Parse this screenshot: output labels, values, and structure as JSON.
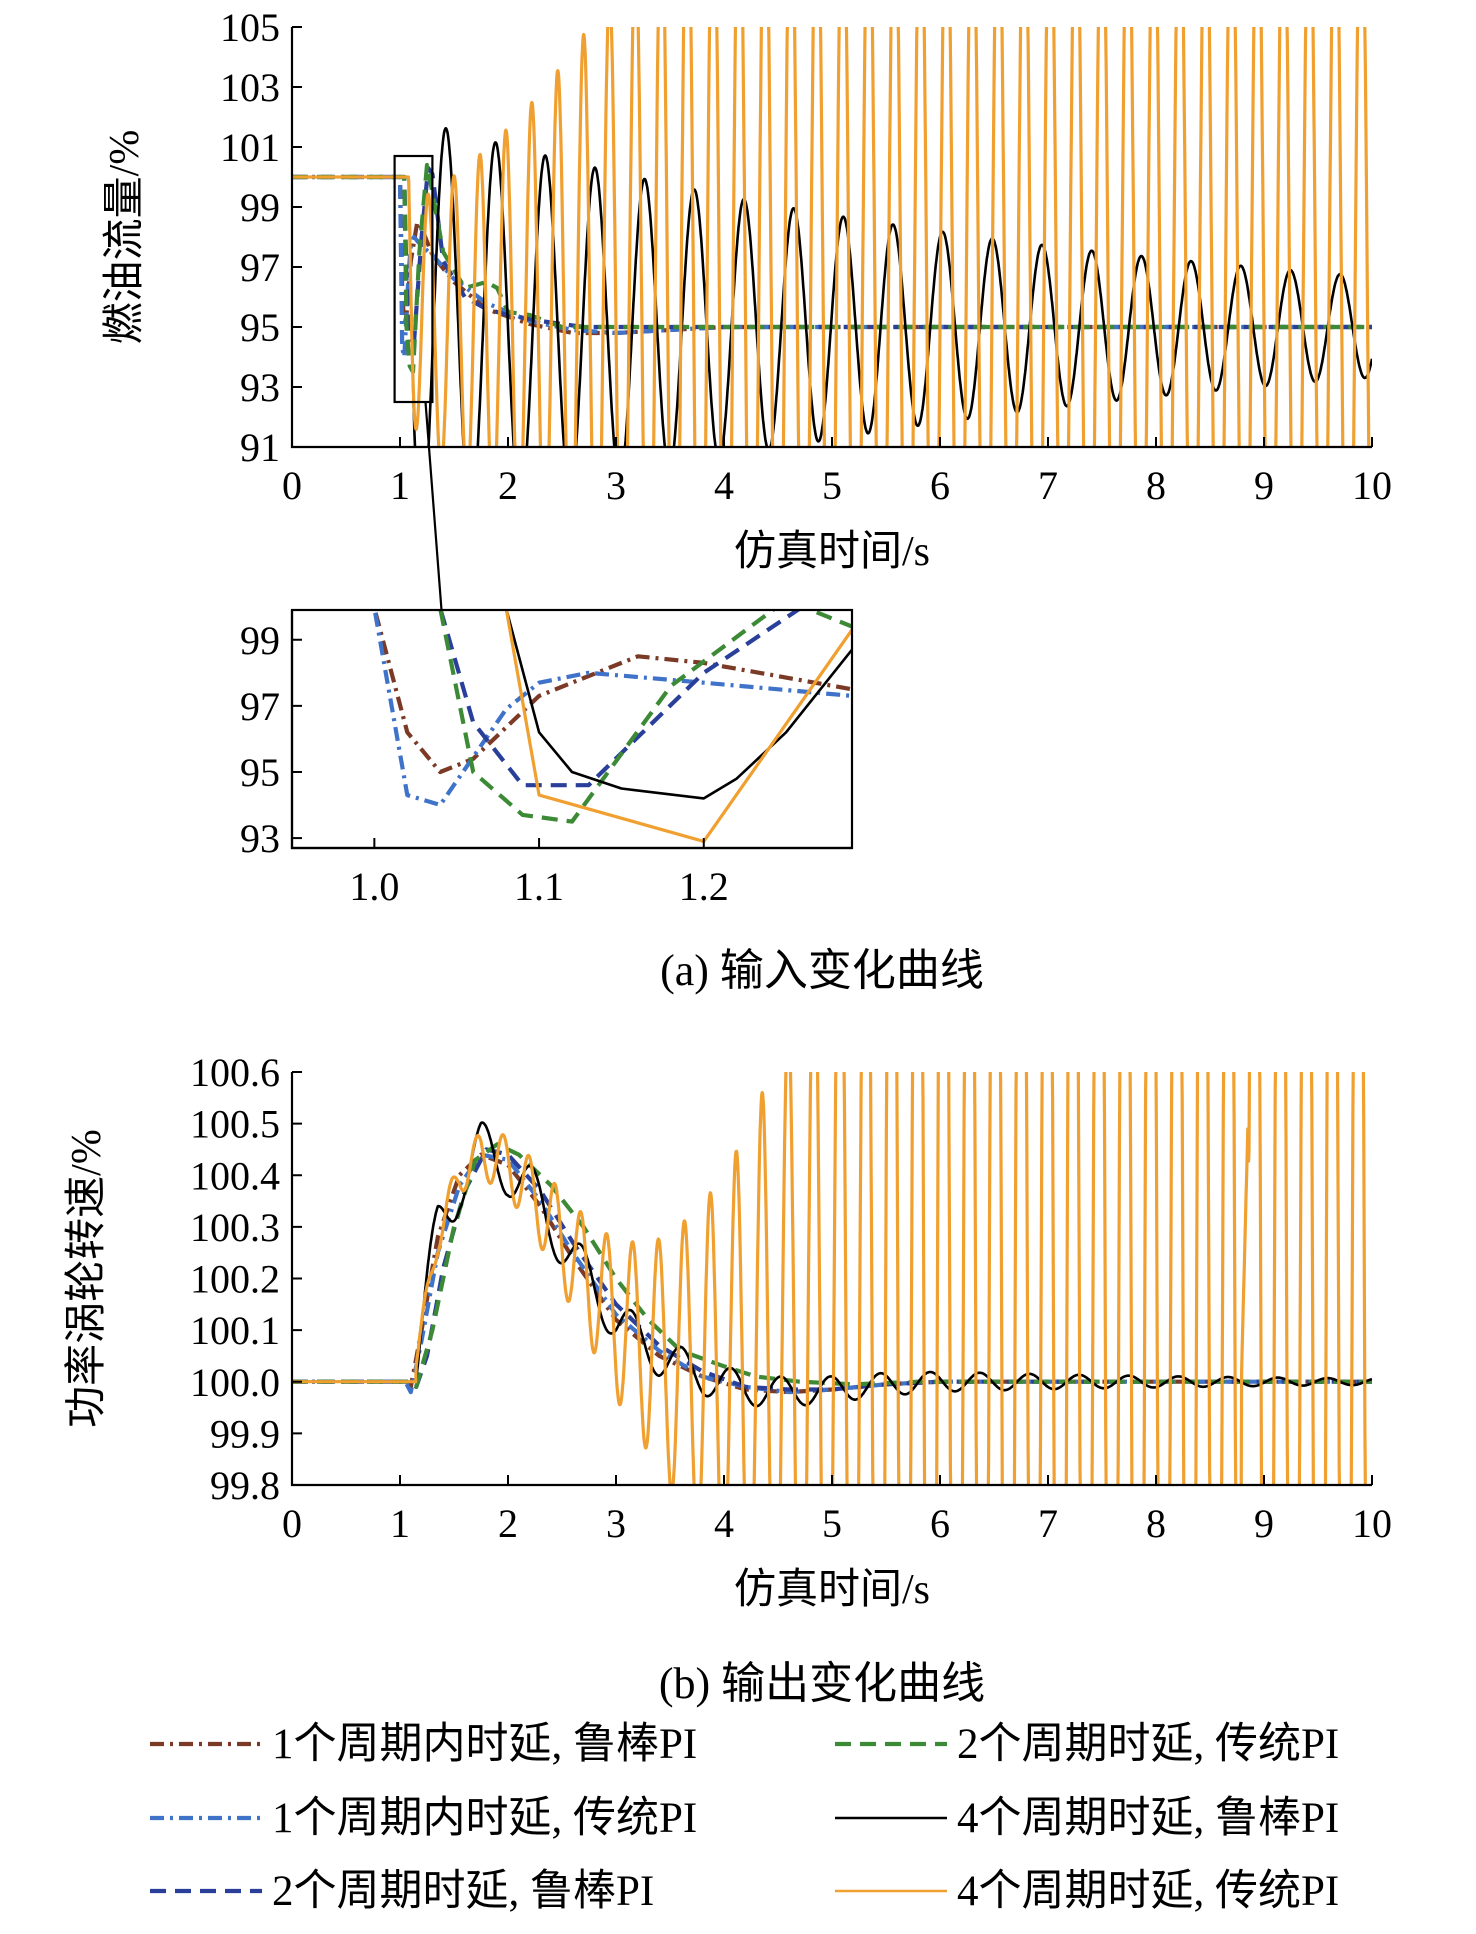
{
  "colors": {
    "r1": "#7b3a26",
    "r2": "#3f73c9",
    "r3": "#2a3f9a",
    "r4": "#3c8a36",
    "r5": "#000000",
    "r6": "#f0a030"
  },
  "captions": {
    "a": "(a) 输入变化曲线",
    "b": "(b) 输出变化曲线"
  },
  "legend": [
    {
      "id": "r1",
      "label": "1个周期内时延, 鲁棒PI",
      "style": "dashdot"
    },
    {
      "id": "r4",
      "label": "2个周期时延, 传统PI",
      "style": "dash"
    },
    {
      "id": "r2",
      "label": "1个周期内时延, 传统PI",
      "style": "dashdot"
    },
    {
      "id": "r5",
      "label": "4个周期时延, 鲁棒PI",
      "style": "solid"
    },
    {
      "id": "r3",
      "label": "2个周期时延, 鲁棒PI",
      "style": "dash"
    },
    {
      "id": "r6",
      "label": "4个周期时延, 传统PI",
      "style": "solid"
    }
  ],
  "chart_data": [
    {
      "id": "a_main",
      "type": "line",
      "xlabel": "仿真时间/s",
      "ylabel": "燃油流量/%",
      "xlim": [
        0,
        10
      ],
      "ylim": [
        91,
        105
      ],
      "xticks": [
        0,
        1,
        2,
        3,
        4,
        5,
        6,
        7,
        8,
        9,
        10
      ],
      "xtick_labels": [
        "0",
        "1",
        "2",
        "3",
        "4",
        "5",
        "6",
        "7",
        "8",
        "9",
        "10"
      ],
      "yticks": [
        91,
        93,
        95,
        97,
        99,
        101,
        103,
        105
      ],
      "ytick_labels": [
        "91",
        "93",
        "95",
        "97",
        "99",
        "101",
        "103",
        "105"
      ],
      "zoom_region": {
        "x": [
          0.95,
          1.3
        ],
        "y": [
          92.5,
          100.7
        ]
      },
      "series": [
        {
          "id": "r1",
          "x": [
            0,
            1.0,
            1.02,
            1.04,
            1.06,
            1.1,
            1.16,
            1.2,
            1.3,
            1.5,
            1.8,
            2.2,
            2.6,
            3.0,
            3.5,
            4,
            10
          ],
          "y": [
            100,
            100,
            96.2,
            95.0,
            95.4,
            97.2,
            98.5,
            98.3,
            97.4,
            96.5,
            95.6,
            95.1,
            94.8,
            94.8,
            94.9,
            95,
            95
          ]
        },
        {
          "id": "r2",
          "x": [
            0,
            1.0,
            1.02,
            1.04,
            1.08,
            1.1,
            1.13,
            1.2,
            1.3,
            1.5,
            1.8,
            2.2,
            2.6,
            3.0,
            3.5,
            4,
            10
          ],
          "y": [
            100,
            100,
            94.3,
            94.0,
            96.8,
            97.7,
            98.0,
            97.7,
            97.4,
            96.6,
            95.8,
            95.2,
            94.9,
            94.8,
            94.9,
            95,
            95
          ]
        },
        {
          "id": "r3",
          "x": [
            0,
            1.04,
            1.06,
            1.09,
            1.13,
            1.2,
            1.26,
            1.3,
            1.4,
            1.6,
            1.8,
            2.0,
            2.3,
            2.7,
            3.2,
            10
          ],
          "y": [
            100,
            100,
            96.5,
            94.6,
            94.5,
            98.0,
            100.3,
            100.1,
            97.2,
            96.0,
            95.6,
            95.4,
            95.2,
            95.0,
            95.0,
            95
          ]
        },
        {
          "id": "r4",
          "x": [
            0,
            1.04,
            1.06,
            1.09,
            1.12,
            1.18,
            1.25,
            1.3,
            1.4,
            1.6,
            1.8,
            1.9,
            2.0,
            2.2,
            2.5,
            3.0,
            10
          ],
          "y": [
            100,
            100,
            95.0,
            93.7,
            93.5,
            97.5,
            100.4,
            99.5,
            97.5,
            96.3,
            96.5,
            96.3,
            95.5,
            95.4,
            95.0,
            95.0,
            95
          ]
        },
        {
          "id": "r5",
          "osc": true,
          "x0": 1.08,
          "k": 0.365,
          "T": 0.46,
          "decay": 0.16,
          "amp0": 7.0
        },
        {
          "id": "r6",
          "osc": true,
          "x0": 1.08,
          "k": 0.36,
          "T": 0.24,
          "decay": -0.55,
          "amp0": 4.0,
          "ampMax": 16,
          "clipLow": 90.6,
          "clipHigh": 105.4
        }
      ]
    },
    {
      "id": "a_zoom",
      "type": "line",
      "xlim": [
        0.95,
        1.29
      ],
      "ylim": [
        92.7,
        99.9
      ],
      "xticks": [
        1.0,
        1.1,
        1.2
      ],
      "xtick_labels": [
        "1.0",
        "1.1",
        "1.2"
      ],
      "yticks": [
        93,
        95,
        97,
        99
      ],
      "ytick_labels": [
        "93",
        "95",
        "97",
        "99"
      ],
      "series": [
        {
          "id": "r1",
          "x": [
            0.95,
            1.0,
            1.02,
            1.04,
            1.06,
            1.1,
            1.16,
            1.2,
            1.29
          ],
          "y": [
            99.95,
            99.95,
            96.2,
            95.0,
            95.4,
            97.3,
            98.5,
            98.3,
            97.5
          ]
        },
        {
          "id": "r2",
          "x": [
            0.95,
            1.0,
            1.02,
            1.04,
            1.08,
            1.1,
            1.13,
            1.2,
            1.29
          ],
          "y": [
            99.95,
            99.95,
            94.3,
            94.0,
            96.9,
            97.7,
            98.0,
            97.7,
            97.3
          ]
        },
        {
          "id": "r3",
          "x": [
            0.95,
            1.04,
            1.06,
            1.09,
            1.13,
            1.2,
            1.26,
            1.29
          ],
          "y": [
            99.95,
            99.95,
            96.5,
            94.6,
            94.6,
            98.0,
            100.0,
            100.0
          ]
        },
        {
          "id": "r4",
          "x": [
            0.95,
            1.04,
            1.06,
            1.09,
            1.12,
            1.18,
            1.25,
            1.29
          ],
          "y": [
            99.95,
            99.95,
            95.0,
            93.7,
            93.5,
            97.6,
            100.2,
            99.4
          ]
        },
        {
          "id": "r5",
          "x": [
            0.95,
            1.08,
            1.1,
            1.12,
            1.15,
            1.2,
            1.22,
            1.25,
            1.29
          ],
          "y": [
            99.95,
            99.95,
            96.2,
            95.0,
            94.5,
            94.2,
            94.8,
            96.2,
            98.7
          ]
        },
        {
          "id": "r6",
          "x": [
            0.95,
            1.08,
            1.1,
            1.2,
            1.29
          ],
          "y": [
            99.95,
            99.95,
            94.3,
            92.9,
            99.3
          ]
        }
      ]
    },
    {
      "id": "b_main",
      "type": "line",
      "xlabel": "仿真时间/s",
      "ylabel": "功率涡轮转速/%",
      "xlim": [
        0,
        10
      ],
      "ylim": [
        99.8,
        100.6
      ],
      "xticks": [
        0,
        1,
        2,
        3,
        4,
        5,
        6,
        7,
        8,
        9,
        10
      ],
      "xtick_labels": [
        "0",
        "1",
        "2",
        "3",
        "4",
        "5",
        "6",
        "7",
        "8",
        "9",
        "10"
      ],
      "yticks": [
        99.8,
        99.9,
        100.0,
        100.1,
        100.2,
        100.3,
        100.4,
        100.5,
        100.6
      ],
      "ytick_labels": [
        "99.8",
        "99.9",
        "100.0",
        "100.1",
        "100.2",
        "100.3",
        "100.4",
        "100.5",
        "100.6"
      ],
      "series": [
        {
          "id": "r1",
          "x": [
            0,
            1.05,
            1.1,
            1.2,
            1.35,
            1.55,
            1.75,
            2.0,
            2.3,
            2.6,
            3.0,
            3.4,
            3.8,
            4.2,
            4.6,
            5.0,
            5.5,
            6,
            10
          ],
          "y": [
            100,
            100,
            99.99,
            100.1,
            100.28,
            100.4,
            100.44,
            100.42,
            100.34,
            100.24,
            100.12,
            100.05,
            100.01,
            99.985,
            99.98,
            99.985,
            99.995,
            100,
            100
          ]
        },
        {
          "id": "r2",
          "x": [
            0,
            1.05,
            1.1,
            1.2,
            1.35,
            1.55,
            1.75,
            2.0,
            2.3,
            2.6,
            3.0,
            3.4,
            3.8,
            4.2,
            4.6,
            5.0,
            5.5,
            6,
            10
          ],
          "y": [
            100,
            100,
            99.98,
            100.08,
            100.25,
            100.38,
            100.44,
            100.43,
            100.35,
            100.25,
            100.13,
            100.06,
            100.01,
            99.99,
            99.98,
            99.985,
            99.995,
            100,
            100
          ]
        },
        {
          "id": "r3",
          "x": [
            0,
            1.1,
            1.15,
            1.25,
            1.4,
            1.6,
            1.8,
            2.0,
            2.3,
            2.6,
            3.0,
            3.4,
            3.8,
            4.2,
            4.6,
            5.0,
            5.5,
            6,
            10
          ],
          "y": [
            100,
            100,
            99.99,
            100.05,
            100.22,
            100.37,
            100.45,
            100.44,
            100.37,
            100.27,
            100.15,
            100.07,
            100.02,
            99.99,
            99.985,
            99.985,
            99.995,
            100,
            100
          ]
        },
        {
          "id": "r4",
          "x": [
            0,
            1.1,
            1.15,
            1.3,
            1.5,
            1.7,
            1.9,
            2.1,
            2.4,
            2.7,
            3.0,
            3.3,
            3.6,
            4.0,
            4.3,
            4.7,
            5.2,
            5.8,
            10
          ],
          "y": [
            100,
            100,
            99.99,
            100.1,
            100.3,
            100.43,
            100.46,
            100.44,
            100.38,
            100.3,
            100.2,
            100.12,
            100.06,
            100.03,
            100.01,
            100.0,
            99.995,
            100,
            100
          ]
        },
        {
          "id": "r5",
          "osc": true,
          "base": "r1",
          "x0": 1.15,
          "T": 0.46,
          "decay": 0.28,
          "amp0": 0.075
        },
        {
          "id": "r6",
          "osc": true,
          "base": "r1",
          "x0": 1.15,
          "T": 0.24,
          "decay": -0.98,
          "amp0": 0.025,
          "ampMax": 2,
          "clipLow": 99.78,
          "clipHigh": 100.62,
          "spike": {
            "x": 8.85,
            "y": 100.49
          }
        }
      ]
    }
  ]
}
